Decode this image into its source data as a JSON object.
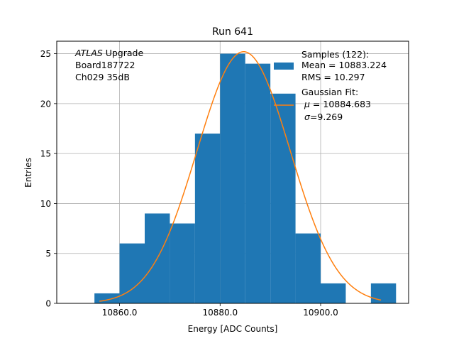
{
  "chart_data": {
    "type": "histogram",
    "title": "Run 641",
    "xlabel": "Energy [ADC Counts]",
    "ylabel": "Entries",
    "xlim": [
      10847.5,
      10917.5
    ],
    "ylim": [
      0,
      26.25
    ],
    "grid": true,
    "xticks": [
      10860,
      10880,
      10900
    ],
    "xtick_labels": [
      "10860.0",
      "10880.0",
      "10900.0"
    ],
    "yticks": [
      0,
      5,
      10,
      15,
      20,
      25
    ],
    "yticks_labels": [
      "0",
      "5",
      "10",
      "15",
      "20",
      "25"
    ],
    "bins": [
      {
        "x0": 10855,
        "x1": 10860,
        "count": 1
      },
      {
        "x0": 10860,
        "x1": 10865,
        "count": 6
      },
      {
        "x0": 10865,
        "x1": 10870,
        "count": 9
      },
      {
        "x0": 10870,
        "x1": 10875,
        "count": 8
      },
      {
        "x0": 10875,
        "x1": 10880,
        "count": 17
      },
      {
        "x0": 10880,
        "x1": 10885,
        "count": 25
      },
      {
        "x0": 10885,
        "x1": 10890,
        "count": 24
      },
      {
        "x0": 10890,
        "x1": 10895,
        "count": 21
      },
      {
        "x0": 10895,
        "x1": 10900,
        "count": 7
      },
      {
        "x0": 10900,
        "x1": 10905,
        "count": 2
      },
      {
        "x0": 10905,
        "x1": 10910,
        "count": 0
      },
      {
        "x0": 10910,
        "x1": 10915,
        "count": 2
      }
    ],
    "fit": {
      "type": "gaussian",
      "mu": 10884.683,
      "sigma": 9.269,
      "amplitude": 25.2,
      "x_range": [
        10856,
        10912
      ]
    },
    "colors": {
      "bars": "#1f77b4",
      "fit": "#ff7f0e",
      "grid": "#b0b0b0"
    },
    "annotation": {
      "experiment": "ATLAS",
      "experiment_suffix": " Upgrade",
      "board": " Board187722",
      "channel": " Ch029 35dB"
    },
    "legend": {
      "location": "top-right",
      "samples_title": "Samples (122):",
      "samples_mean": " Mean = 10883.224",
      "samples_rms": " RMS = 10.297",
      "fit_title": "Gaussian Fit:",
      "fit_mu_symbol": "μ",
      "fit_mu_value": " = 10884.683",
      "fit_sigma_symbol": "σ",
      "fit_sigma_value": "=9.269"
    }
  }
}
